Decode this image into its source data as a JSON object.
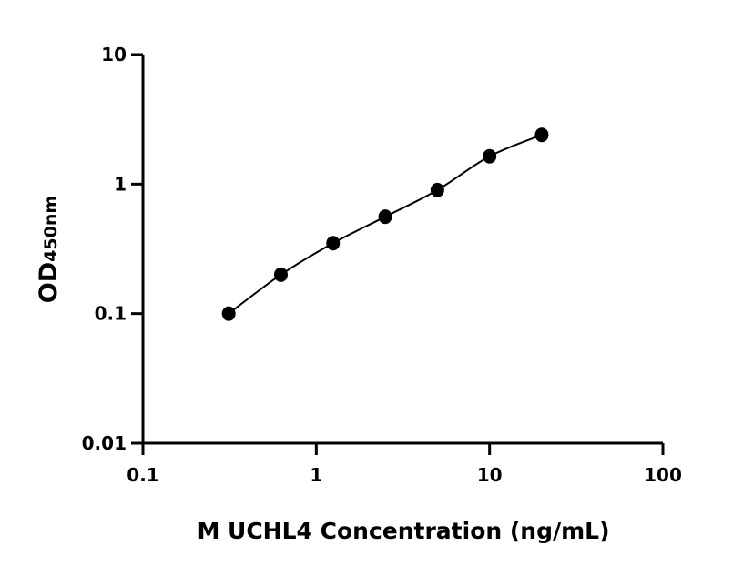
{
  "chart_data": {
    "type": "scatter",
    "title": "",
    "xlabel": "M UCHL4 Concentration (ng/mL)",
    "ylabel_main": "OD",
    "ylabel_sub": "450nm",
    "x_scale": "log",
    "y_scale": "log",
    "xlim": [
      0.1,
      100
    ],
    "ylim": [
      0.01,
      10
    ],
    "x_ticks": [
      "0.1",
      "1",
      "10",
      "100"
    ],
    "y_ticks": [
      "0.01",
      "0.1",
      "1",
      "10"
    ],
    "grid": false,
    "fit_line": true,
    "marker_color": "#000000",
    "x": [
      0.3125,
      0.625,
      1.25,
      2.5,
      5,
      10,
      20
    ],
    "y": [
      0.1,
      0.2,
      0.35,
      0.56,
      0.9,
      1.64,
      2.4
    ]
  }
}
